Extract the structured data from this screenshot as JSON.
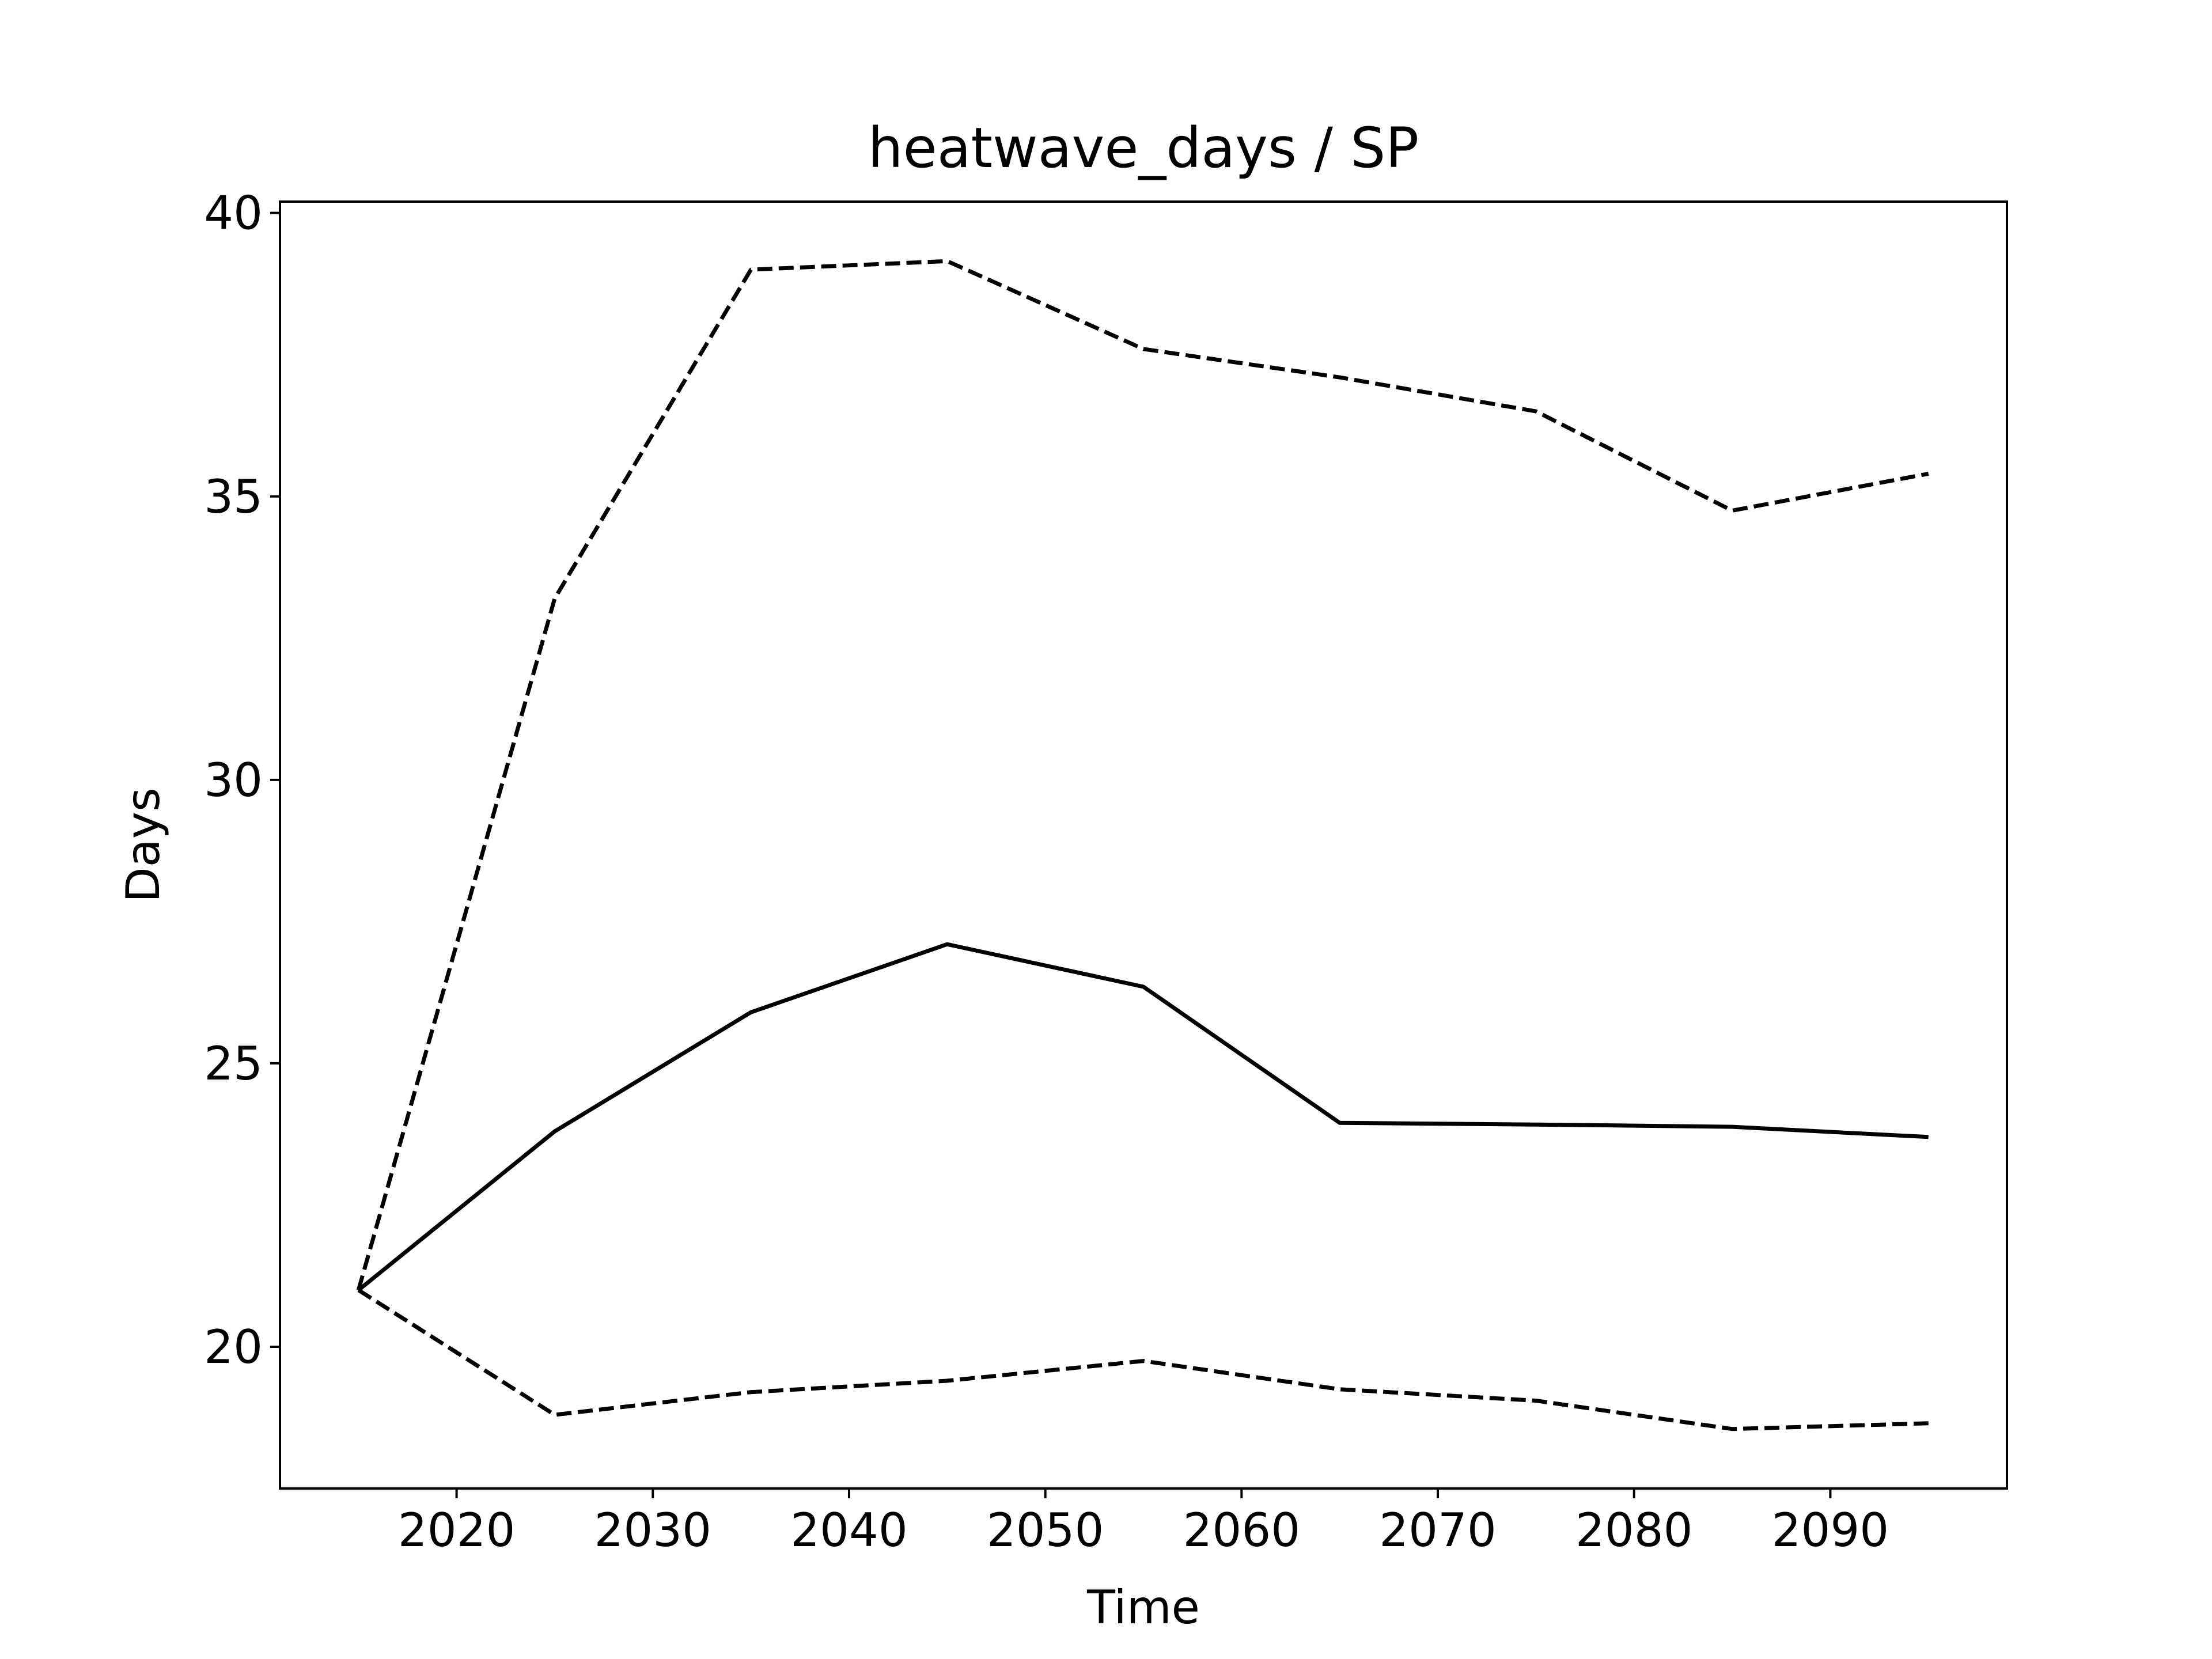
{
  "chart_data": {
    "type": "line",
    "title": "heatwave_days / SP",
    "xlabel": "Time",
    "ylabel": "Days",
    "x": [
      2015,
      2025,
      2035,
      2045,
      2055,
      2065,
      2075,
      2085,
      2095
    ],
    "xlim": [
      2011,
      2099
    ],
    "ylim": [
      17.5,
      40.2
    ],
    "xticks": [
      2020,
      2030,
      2040,
      2050,
      2060,
      2070,
      2080,
      2090
    ],
    "yticks": [
      20,
      25,
      30,
      35,
      40
    ],
    "grid": false,
    "series": [
      {
        "style": "dashed",
        "color": "#000000",
        "values": [
          21.0,
          33.2,
          39.0,
          39.15,
          37.6,
          37.1,
          36.5,
          34.75,
          35.4
        ]
      },
      {
        "style": "solid",
        "color": "#000000",
        "values": [
          21.0,
          23.8,
          25.9,
          27.1,
          26.35,
          23.95,
          23.92,
          23.88,
          23.7
        ]
      },
      {
        "style": "dashed",
        "color": "#000000",
        "values": [
          21.0,
          18.8,
          19.2,
          19.4,
          19.75,
          19.25,
          19.05,
          18.55,
          18.65
        ]
      }
    ]
  }
}
